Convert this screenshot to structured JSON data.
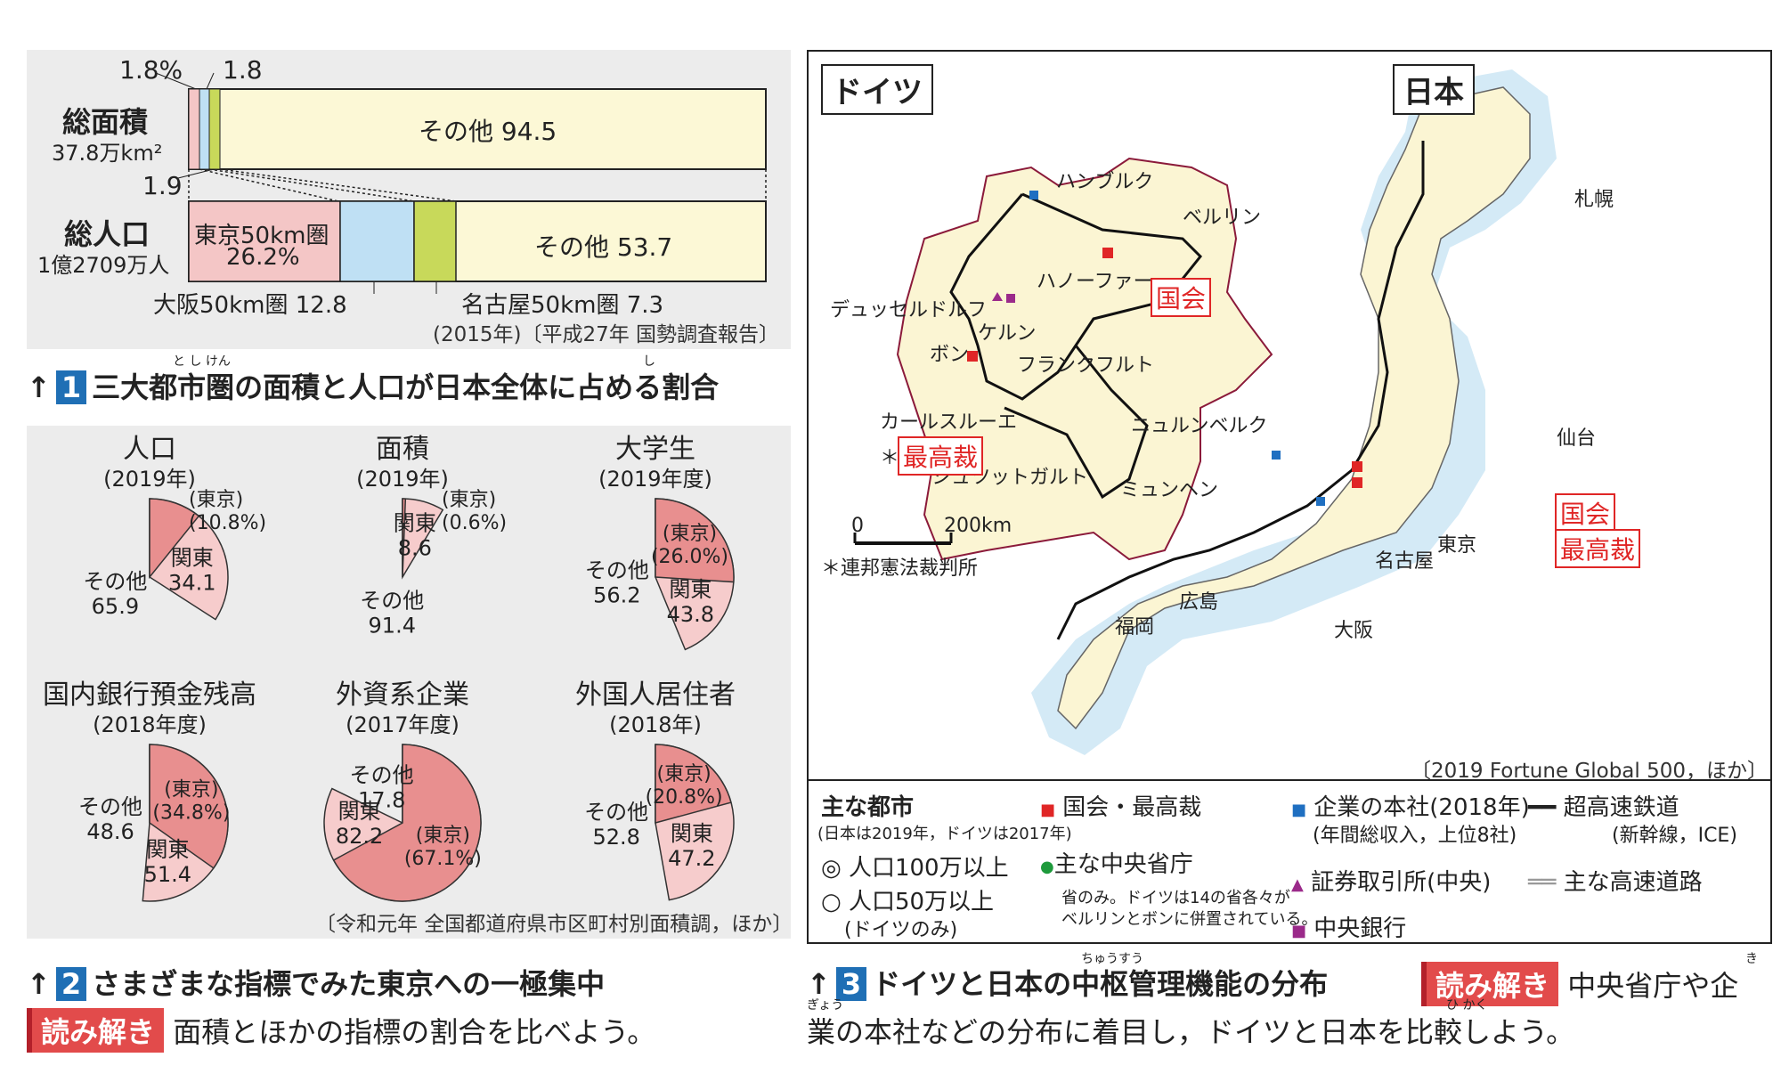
{
  "fig1": {
    "area_label": "総面積",
    "area_value": "37.8万km²",
    "pop_label": "総人口",
    "pop_value": "1億2709万人",
    "pct_top_left": "1.8%",
    "pct_top_right": "1.8",
    "pct_bottom": "1.9",
    "area_other": "その他 94.5",
    "tokyo_label": "東京50km圏",
    "tokyo_value": "26.2%",
    "pop_other": "その他 53.7",
    "osaka": "大阪50km圏 12.8",
    "nagoya": "名古屋50km圏 7.3",
    "source": "(2015年)〔平成27年 国勢調査報告〕",
    "num": "1",
    "title": "三大都市圏の面積と人口が日本全体に占める割合",
    "ruby_toshiken": "と し けん",
    "ruby_shi": "し"
  },
  "fig2": {
    "pies": [
      {
        "title": "人口",
        "year": "(2019年)",
        "tokyo": 10.8,
        "kanto": 34.1,
        "other": 65.9,
        "tokyo_text": "(東京)",
        "tokyo_pct": "(10.8%)",
        "kanto_text": "関東",
        "kanto_val": "34.1",
        "other_text": "その他",
        "other_val": "65.9"
      },
      {
        "title": "面積",
        "year": "(2019年)",
        "tokyo": 0.6,
        "kanto": 8.6,
        "other": 91.4,
        "tokyo_text": "(東京)",
        "tokyo_pct": "(0.6%)",
        "kanto_text": "関東",
        "kanto_val": "8.6",
        "other_text": "その他",
        "other_val": "91.4"
      },
      {
        "title": "大学生",
        "year": "(2019年度)",
        "tokyo": 26.0,
        "kanto": 43.8,
        "other": 56.2,
        "tokyo_text": "(東京)",
        "tokyo_pct": "(26.0%)",
        "kanto_text": "関東",
        "kanto_val": "43.8",
        "other_text": "その他",
        "other_val": "56.2"
      },
      {
        "title": "国内銀行預金残高",
        "year": "(2018年度)",
        "tokyo": 34.8,
        "kanto": 51.4,
        "other": 48.6,
        "tokyo_text": "(東京)",
        "tokyo_pct": "(34.8%)",
        "kanto_text": "関東",
        "kanto_val": "51.4",
        "other_text": "その他",
        "other_val": "48.6"
      },
      {
        "title": "外資系企業",
        "year": "(2017年度)",
        "tokyo": 67.1,
        "kanto": 82.2,
        "other": 17.8,
        "tokyo_text": "(東京)",
        "tokyo_pct": "(67.1%)",
        "kanto_text": "関東",
        "kanto_val": "82.2",
        "other_text": "その他",
        "other_val": "17.8"
      },
      {
        "title": "外国人居住者",
        "year": "(2018年)",
        "tokyo": 20.8,
        "kanto": 47.2,
        "other": 52.8,
        "tokyo_text": "(東京)",
        "tokyo_pct": "(20.8%)",
        "kanto_text": "関東",
        "kanto_val": "47.2",
        "other_text": "その他",
        "other_val": "52.8"
      }
    ],
    "source": "〔令和元年 全国都道府県市区町村別面積調，ほか〕",
    "num": "2",
    "title": "さまざまな指標でみた東京への一極集中",
    "yomi_label": "読み解き",
    "yomi_text": "面積とほかの指標の割合を比べよう。"
  },
  "fig3": {
    "germany_label": "ドイツ",
    "japan_label": "日本",
    "de_cities": [
      "ハンブルク",
      "ベルリン",
      "ハノーファー",
      "デュッセルドルフ",
      "ケルン",
      "ボン",
      "フランクフルト",
      "カールスルーエ",
      "ニュルンベルク",
      "シュツットガルト",
      "ミュンヘン"
    ],
    "de_kokkai": "国会",
    "de_saiko": "最高裁",
    "asterisk": "＊",
    "de_note": "＊連邦憲法裁判所",
    "jp_cities": [
      "札幌",
      "仙台",
      "東京",
      "名古屋",
      "広島",
      "大阪",
      "福岡"
    ],
    "jp_kokkai": "国会",
    "jp_saiko": "最高裁",
    "scale_zero": "0",
    "scale_dist": "200km",
    "map_source": "〔2019 Fortune Global 500，ほか〕",
    "legend": {
      "cities_title": "主な都市",
      "cities_note": "(日本は2019年，ドイツは2017年)",
      "city_big": "◎ 人口100万以上",
      "city_mid": "○ 人口50万以上",
      "city_mid_note": "(ドイツのみ)",
      "kokkai": "国会・最高裁",
      "ministry": "主な中央省庁",
      "ministry_note1": "省のみ。ドイツは14の省各々が",
      "ministry_note2": "ベルリンとボンに併置されている。",
      "hq": "企業の本社(2018年)",
      "hq_note": "(年間総収入，上位8社)",
      "exchange": "証券取引所(中央)",
      "central_bank": "中央銀行",
      "rail": "超高速鉄道",
      "rail_note": "(新幹線，ICE)",
      "highway": "主な高速道路"
    },
    "colors": {
      "kokkai": "#e02626",
      "ministry": "#1e9a3c",
      "hq": "#1f6fc1",
      "exchange": "#9b2a8a",
      "land": "#fbf5d3",
      "sea": "#cfe8f5"
    },
    "num": "3",
    "title": "ドイツと日本の中枢管理機能の分布",
    "ruby_chusu": "ちゅうすう",
    "yomi_label": "読み解き",
    "yomi_text1": "中央省庁や企",
    "yomi_text2": "業の本社などの分布に着目し，ドイツと日本を比較しよう。",
    "ruby_ki": "き",
    "ruby_gyo": "ぎょう",
    "ruby_hikaku": "ひ かく"
  }
}
